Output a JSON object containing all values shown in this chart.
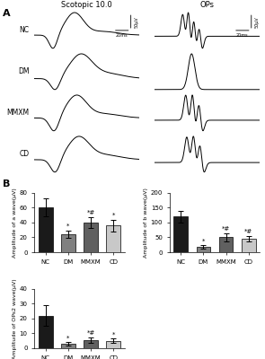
{
  "panel_A_label": "A",
  "panel_B_label": "B",
  "scotopic_title": "Scotopic 10.0",
  "ops_title": "OPs",
  "trace_labels": [
    "NC",
    "DM",
    "MMXM",
    "CD"
  ],
  "bar_chart_1": {
    "ylabel": "Amplitude of a wave(μV)",
    "categories": [
      "NC",
      "DM",
      "MMXM",
      "CD"
    ],
    "values": [
      61,
      24,
      40,
      36
    ],
    "errors": [
      12,
      5,
      7,
      8
    ],
    "colors": [
      "#1a1a1a",
      "#808080",
      "#606060",
      "#c8c8c8"
    ],
    "annotations": [
      "",
      "*",
      "*#",
      "*"
    ],
    "ylim": [
      0,
      80
    ],
    "yticks": [
      0,
      20,
      40,
      60,
      80
    ]
  },
  "bar_chart_2": {
    "ylabel": "Amplitude of b wave(μV)",
    "categories": [
      "NC",
      "DM",
      "MMXM",
      "CD"
    ],
    "values": [
      120,
      18,
      50,
      45
    ],
    "errors": [
      20,
      5,
      15,
      10
    ],
    "colors": [
      "#1a1a1a",
      "#808080",
      "#606060",
      "#c8c8c8"
    ],
    "annotations": [
      "",
      "*",
      "*#",
      "*#"
    ],
    "ylim": [
      0,
      200
    ],
    "yticks": [
      0,
      50,
      100,
      150,
      200
    ]
  },
  "bar_chart_3": {
    "ylabel": "Amplitude of OPs2 wave(μV)",
    "categories": [
      "NC",
      "DM",
      "MMXM",
      "CD"
    ],
    "values": [
      22,
      3,
      5.5,
      5
    ],
    "errors": [
      7,
      1,
      2,
      1.5
    ],
    "colors": [
      "#1a1a1a",
      "#808080",
      "#606060",
      "#c8c8c8"
    ],
    "annotations": [
      "",
      "*",
      "*#",
      "*"
    ],
    "ylim": [
      0,
      40
    ],
    "yticks": [
      0,
      10,
      20,
      30,
      40
    ]
  }
}
